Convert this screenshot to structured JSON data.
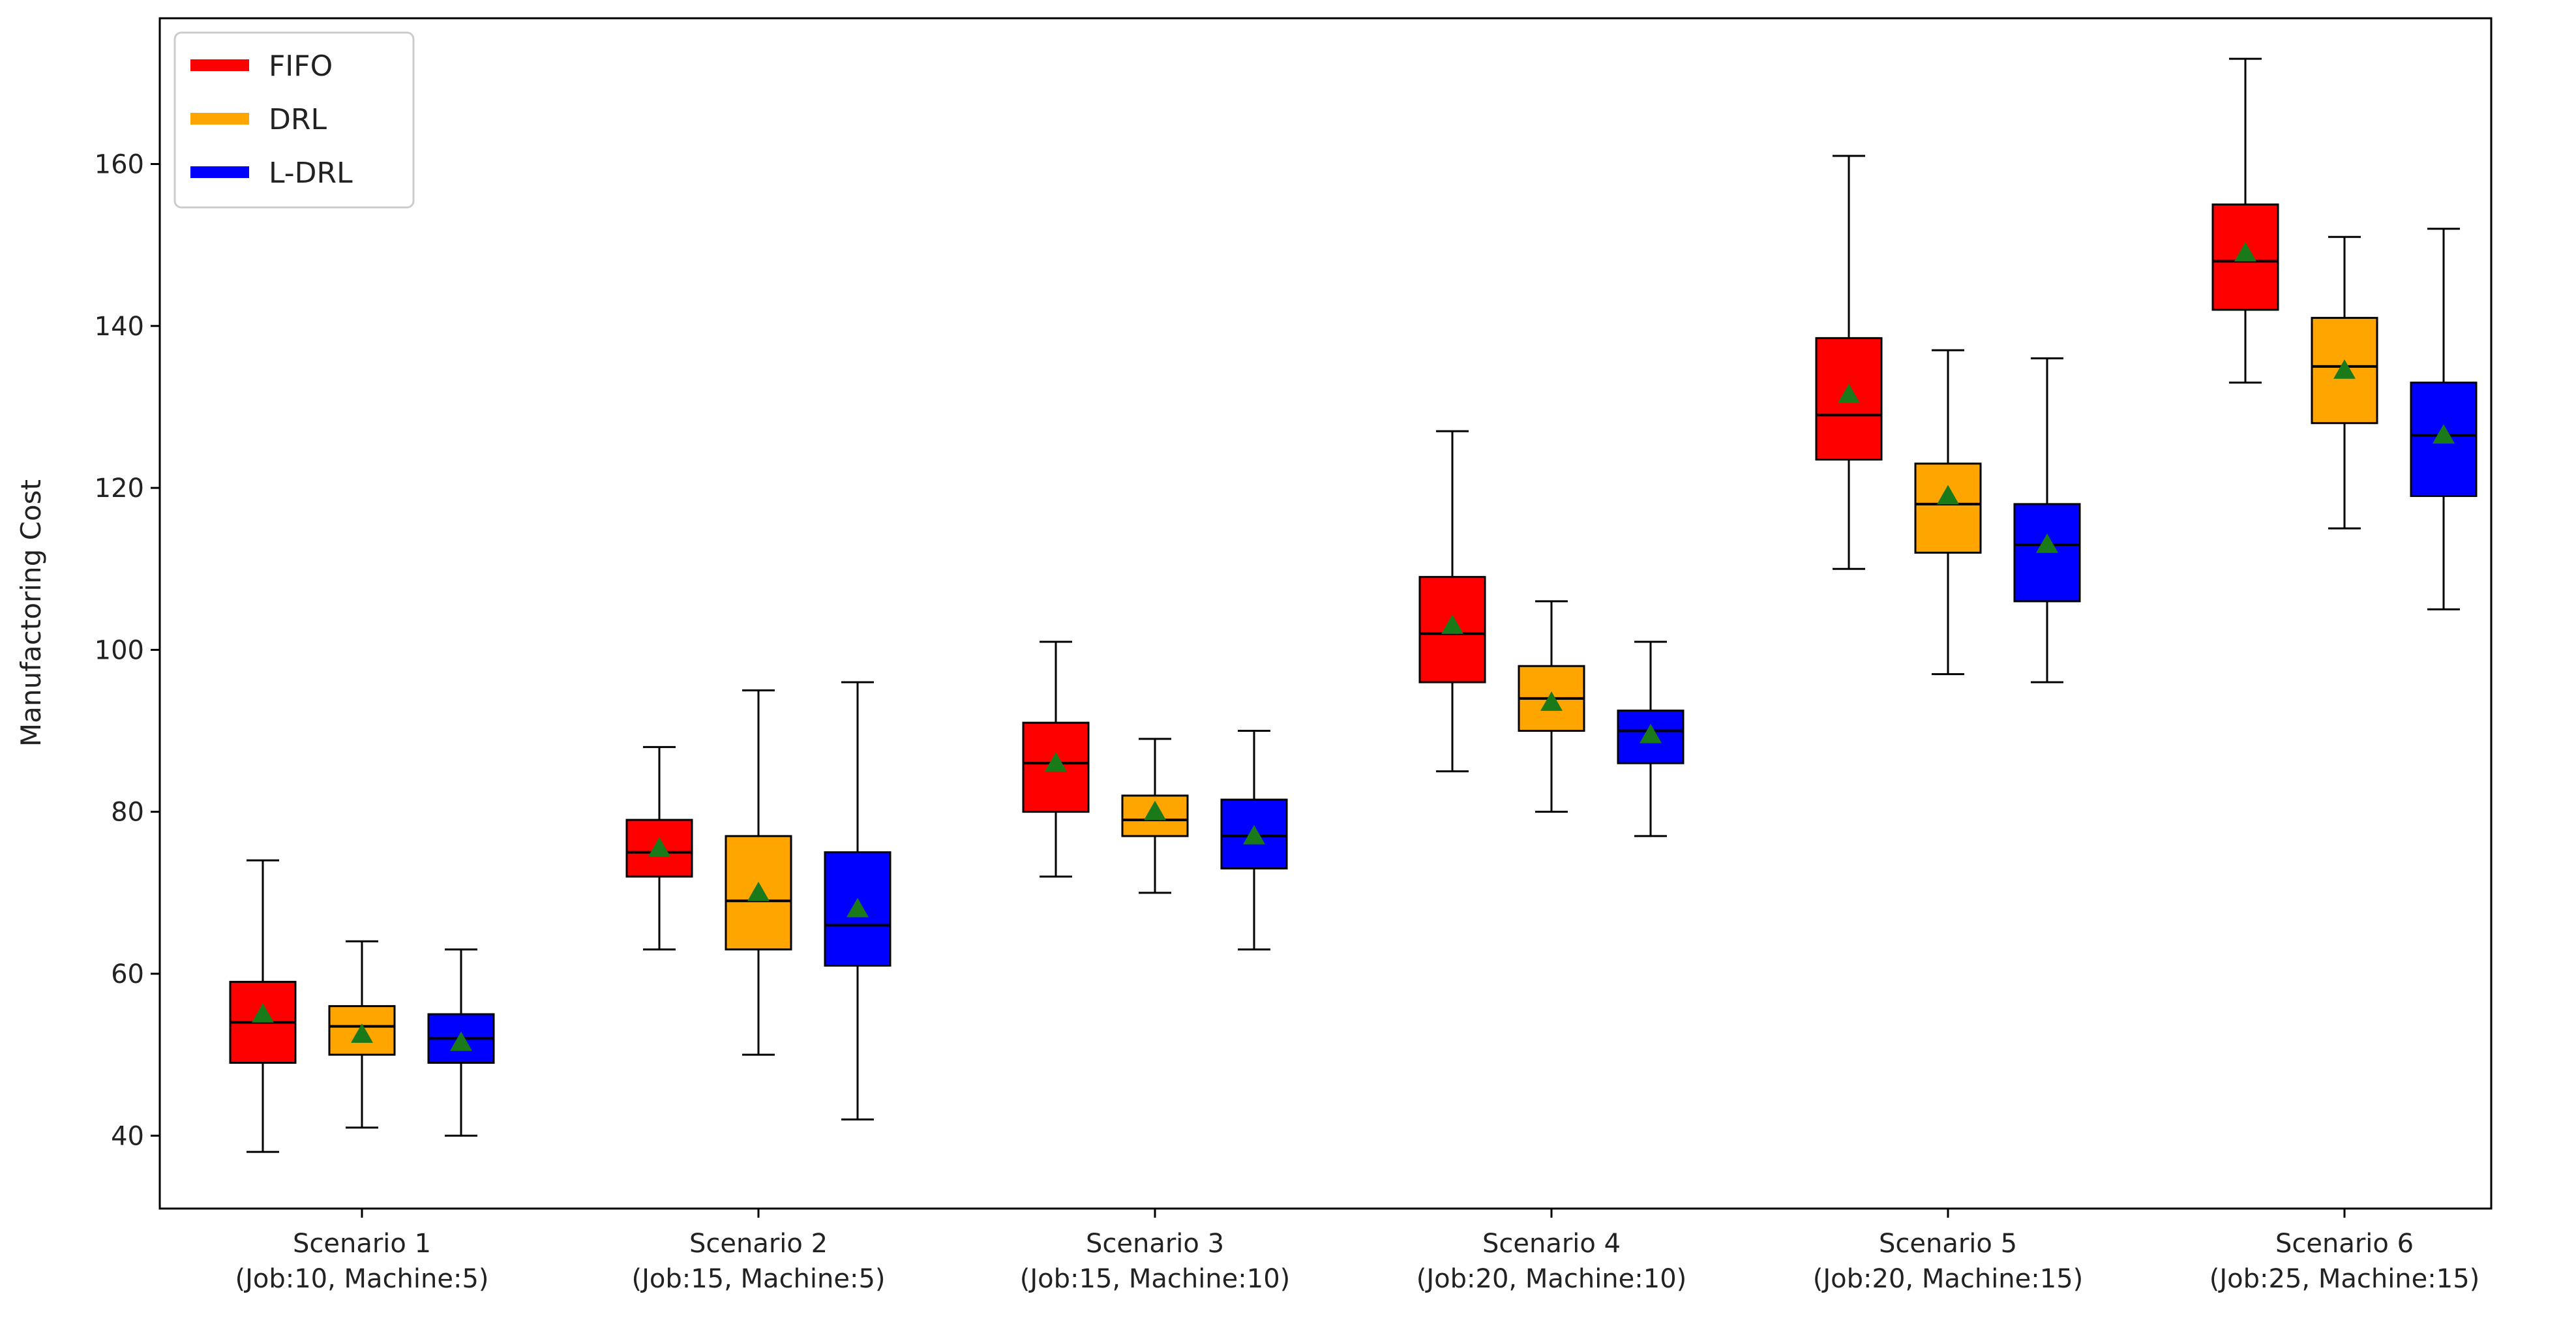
{
  "chart_data": {
    "type": "box",
    "title": "",
    "xlabel": "",
    "ylabel": "Manufactoring Cost",
    "ylim": [
      31,
      178
    ],
    "yticks": [
      40,
      60,
      80,
      100,
      120,
      140,
      160
    ],
    "grid": false,
    "legend_position": "top-left",
    "categories": [
      [
        "Scenario 1",
        "(Job:10, Machine:5)"
      ],
      [
        "Scenario 2",
        "(Job:15, Machine:5)"
      ],
      [
        "Scenario 3",
        "(Job:15, Machine:10)"
      ],
      [
        "Scenario 4",
        "(Job:20, Machine:10)"
      ],
      [
        "Scenario 5",
        "(Job:20, Machine:15)"
      ],
      [
        "Scenario 6",
        "(Job:25, Machine:15)"
      ]
    ],
    "mean_marker_color": "#1a7a1a",
    "series": [
      {
        "name": "FIFO",
        "color": "#ff0000",
        "boxes": [
          {
            "min": 38,
            "q1": 49,
            "median": 54,
            "q3": 59,
            "max": 74,
            "mean": 55
          },
          {
            "min": 63,
            "q1": 72,
            "median": 75,
            "q3": 79,
            "max": 88,
            "mean": 75.5
          },
          {
            "min": 72,
            "q1": 80,
            "median": 86,
            "q3": 91,
            "max": 101,
            "mean": 86
          },
          {
            "min": 85,
            "q1": 96,
            "median": 102,
            "q3": 109,
            "max": 127,
            "mean": 103
          },
          {
            "min": 110,
            "q1": 123.5,
            "median": 129,
            "q3": 138.5,
            "max": 161,
            "mean": 131.5
          },
          {
            "min": 133,
            "q1": 142,
            "median": 148,
            "q3": 155,
            "max": 173,
            "mean": 149
          }
        ]
      },
      {
        "name": "DRL",
        "color": "#ffa500",
        "boxes": [
          {
            "min": 41,
            "q1": 50,
            "median": 53.5,
            "q3": 56,
            "max": 64,
            "mean": 52.5
          },
          {
            "min": 50,
            "q1": 63,
            "median": 69,
            "q3": 77,
            "max": 95,
            "mean": 70
          },
          {
            "min": 70,
            "q1": 77,
            "median": 79,
            "q3": 82,
            "max": 89,
            "mean": 80
          },
          {
            "min": 80,
            "q1": 90,
            "median": 94,
            "q3": 98,
            "max": 106,
            "mean": 93.5
          },
          {
            "min": 97,
            "q1": 112,
            "median": 118,
            "q3": 123,
            "max": 137,
            "mean": 119
          },
          {
            "min": 115,
            "q1": 128,
            "median": 135,
            "q3": 141,
            "max": 151,
            "mean": 134.5
          }
        ]
      },
      {
        "name": "L-DRL",
        "color": "#0000ff",
        "boxes": [
          {
            "min": 40,
            "q1": 49,
            "median": 52,
            "q3": 55,
            "max": 63,
            "mean": 51.5
          },
          {
            "min": 42,
            "q1": 61,
            "median": 66,
            "q3": 75,
            "max": 96,
            "mean": 68
          },
          {
            "min": 63,
            "q1": 73,
            "median": 77,
            "q3": 81.5,
            "max": 90,
            "mean": 77
          },
          {
            "min": 77,
            "q1": 86,
            "median": 90,
            "q3": 92.5,
            "max": 101,
            "mean": 89.5
          },
          {
            "min": 96,
            "q1": 106,
            "median": 113,
            "q3": 118,
            "max": 136,
            "mean": 113
          },
          {
            "min": 105,
            "q1": 119,
            "median": 126.5,
            "q3": 133,
            "max": 152,
            "mean": 126.5
          }
        ]
      }
    ]
  }
}
